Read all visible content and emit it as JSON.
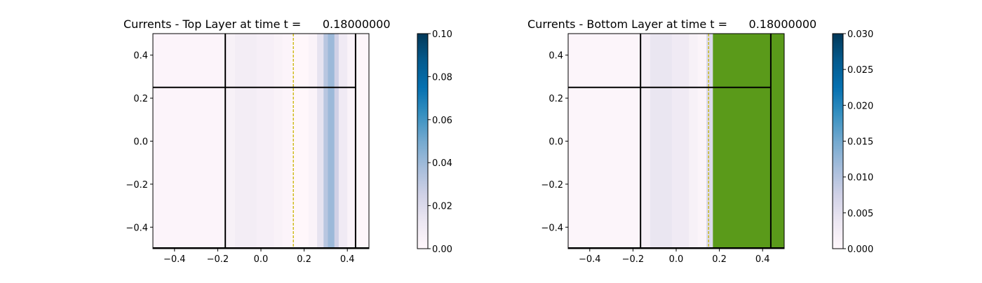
{
  "chart_data": [
    {
      "type": "heatmap",
      "title": "Currents - Top Layer at time t =      0.18000000",
      "xlabel": "",
      "ylabel": "",
      "xlim": [
        -0.5,
        0.5
      ],
      "ylim": [
        -0.5,
        0.5
      ],
      "x_ticks": [
        "−0.4",
        "−0.2",
        "0.0",
        "0.2",
        "0.4"
      ],
      "y_ticks": [
        "−0.4",
        "−0.2",
        "0.0",
        "0.2",
        "0.4"
      ],
      "colormap": "PuBu",
      "colorbar": {
        "min": 0.0,
        "max": 0.1,
        "ticks": [
          "0.00",
          "0.02",
          "0.04",
          "0.06",
          "0.08",
          "0.10"
        ]
      },
      "bands": [
        {
          "x0": -0.5,
          "x1": -0.32,
          "value": 0.002
        },
        {
          "x0": -0.32,
          "x1": -0.16,
          "value": 0.002
        },
        {
          "x0": -0.16,
          "x1": -0.12,
          "value": 0.005
        },
        {
          "x0": -0.12,
          "x1": -0.02,
          "value": 0.008
        },
        {
          "x0": -0.02,
          "x1": 0.06,
          "value": 0.006
        },
        {
          "x0": 0.06,
          "x1": 0.1,
          "value": 0.004
        },
        {
          "x0": 0.1,
          "x1": 0.14,
          "value": 0.002
        },
        {
          "x0": 0.14,
          "x1": 0.22,
          "value": 0.0
        },
        {
          "x0": 0.22,
          "x1": 0.26,
          "value": 0.003
        },
        {
          "x0": 0.26,
          "x1": 0.29,
          "value": 0.015
        },
        {
          "x0": 0.29,
          "x1": 0.31,
          "value": 0.032
        },
        {
          "x0": 0.31,
          "x1": 0.34,
          "value": 0.04
        },
        {
          "x0": 0.34,
          "x1": 0.36,
          "value": 0.025
        },
        {
          "x0": 0.36,
          "x1": 0.4,
          "value": 0.01
        },
        {
          "x0": 0.4,
          "x1": 0.44,
          "value": 0.003
        },
        {
          "x0": 0.44,
          "x1": 0.5,
          "value": 0.001
        }
      ],
      "green_region": null,
      "boundary_lines": {
        "vertical": [
          -0.165,
          0.438
        ],
        "horizontal": [
          0.25,
          -0.5
        ],
        "horizontal_xmax": 0.438
      },
      "dashed_line_x": 0.15,
      "colors": {
        "boundary": "#000000",
        "dashed": "#c8b400",
        "green": "#5a9a1a"
      }
    },
    {
      "type": "heatmap",
      "title": "Currents - Bottom Layer at time t =      0.18000000",
      "xlabel": "",
      "ylabel": "",
      "xlim": [
        -0.5,
        0.5
      ],
      "ylim": [
        -0.5,
        0.5
      ],
      "x_ticks": [
        "−0.4",
        "−0.2",
        "0.0",
        "0.2",
        "0.4"
      ],
      "y_ticks": [
        "−0.4",
        "−0.2",
        "0.0",
        "0.2",
        "0.4"
      ],
      "colormap": "PuBu",
      "colorbar": {
        "min": 0.0,
        "max": 0.03,
        "ticks": [
          "0.000",
          "0.005",
          "0.010",
          "0.015",
          "0.020",
          "0.025",
          "0.030"
        ]
      },
      "bands": [
        {
          "x0": -0.5,
          "x1": -0.16,
          "value": 0.0005
        },
        {
          "x0": -0.16,
          "x1": -0.12,
          "value": 0.002
        },
        {
          "x0": -0.12,
          "x1": -0.02,
          "value": 0.004
        },
        {
          "x0": -0.02,
          "x1": 0.06,
          "value": 0.003
        },
        {
          "x0": 0.06,
          "x1": 0.1,
          "value": 0.0015
        },
        {
          "x0": 0.1,
          "x1": 0.14,
          "value": 0.0008
        },
        {
          "x0": 0.14,
          "x1": 0.17,
          "value": 0.006
        }
      ],
      "green_region": {
        "x0": 0.17,
        "x1": 0.5
      },
      "boundary_lines": {
        "vertical": [
          -0.165,
          0.438
        ],
        "horizontal": [
          0.25,
          -0.5
        ],
        "horizontal_xmax": 0.438
      },
      "dashed_line_x": 0.15,
      "colors": {
        "boundary": "#000000",
        "dashed": "#c8b400",
        "green": "#5a9a1a"
      }
    }
  ]
}
